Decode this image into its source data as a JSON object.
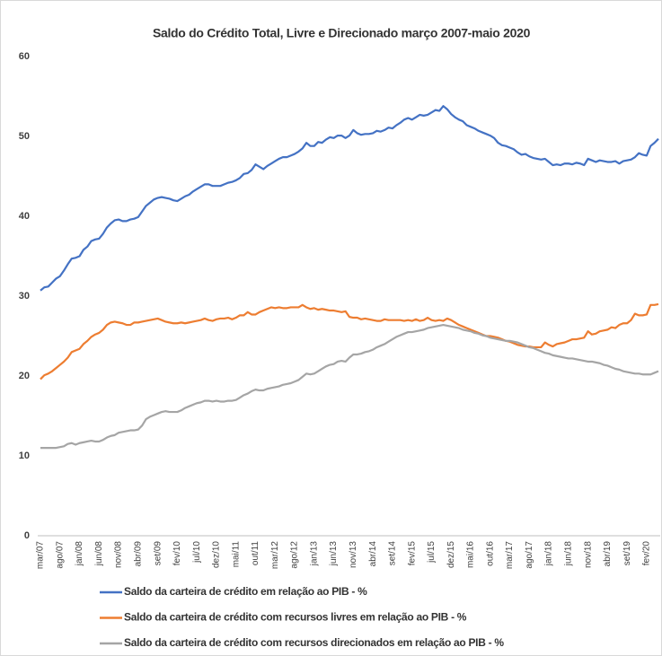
{
  "chart_data": {
    "type": "line",
    "title": "Saldo do Crédito Total, Livre e Direcionado março 2007-maio 2020",
    "categories": [
      "mar/07",
      null,
      null,
      null,
      null,
      "ago/07",
      null,
      null,
      null,
      null,
      "jan/08",
      null,
      null,
      null,
      null,
      "jun/08",
      null,
      null,
      null,
      null,
      "nov/08",
      null,
      null,
      null,
      null,
      "abr/09",
      null,
      null,
      null,
      null,
      "set/09",
      null,
      null,
      null,
      null,
      "fev/10",
      null,
      null,
      null,
      null,
      "jul/10",
      null,
      null,
      null,
      null,
      "dez/10",
      null,
      null,
      null,
      null,
      "mai/11",
      null,
      null,
      null,
      null,
      "out/11",
      null,
      null,
      null,
      null,
      "mar/12",
      null,
      null,
      null,
      null,
      "ago/12",
      null,
      null,
      null,
      null,
      "jan/13",
      null,
      null,
      null,
      null,
      "jun/13",
      null,
      null,
      null,
      null,
      "nov/13",
      null,
      null,
      null,
      null,
      "abr/14",
      null,
      null,
      null,
      null,
      "set/14",
      null,
      null,
      null,
      null,
      "fev/15",
      null,
      null,
      null,
      null,
      "jul/15",
      null,
      null,
      null,
      null,
      "dez/15",
      null,
      null,
      null,
      null,
      "mai/16",
      null,
      null,
      null,
      null,
      "out/16",
      null,
      null,
      null,
      null,
      "mar/17",
      null,
      null,
      null,
      null,
      "ago/17",
      null,
      null,
      null,
      null,
      "jan/18",
      null,
      null,
      null,
      null,
      "jun/18",
      null,
      null,
      null,
      null,
      "nov/18",
      null,
      null,
      null,
      null,
      "abr/19",
      null,
      null,
      null,
      null,
      "set/19",
      null,
      null,
      null,
      null,
      "fev/20",
      null,
      null,
      null
    ],
    "series": [
      {
        "name": "Saldo da carteira de crédito em relação ao PIB - %",
        "color": "#4472c4",
        "values": [
          30.7,
          31.1,
          31.2,
          31.7,
          32.2,
          32.5,
          33.2,
          34.0,
          34.7,
          34.8,
          35.0,
          35.8,
          36.2,
          36.9,
          37.1,
          37.2,
          37.8,
          38.6,
          39.1,
          39.5,
          39.6,
          39.4,
          39.4,
          39.6,
          39.7,
          39.9,
          40.6,
          41.3,
          41.7,
          42.1,
          42.3,
          42.4,
          42.3,
          42.2,
          42.0,
          41.9,
          42.2,
          42.5,
          42.7,
          43.1,
          43.4,
          43.7,
          44.0,
          44.0,
          43.8,
          43.8,
          43.8,
          44.0,
          44.2,
          44.3,
          44.5,
          44.8,
          45.3,
          45.4,
          45.8,
          46.5,
          46.2,
          45.9,
          46.3,
          46.6,
          46.9,
          47.2,
          47.4,
          47.4,
          47.6,
          47.8,
          48.1,
          48.5,
          49.2,
          48.8,
          48.8,
          49.3,
          49.2,
          49.6,
          49.9,
          49.8,
          50.1,
          50.1,
          49.8,
          50.1,
          50.8,
          50.4,
          50.2,
          50.3,
          50.3,
          50.4,
          50.7,
          50.6,
          50.8,
          51.1,
          51.0,
          51.4,
          51.7,
          52.1,
          52.3,
          52.1,
          52.4,
          52.7,
          52.6,
          52.7,
          53.0,
          53.3,
          53.2,
          53.8,
          53.4,
          52.8,
          52.4,
          52.1,
          51.9,
          51.4,
          51.2,
          51.0,
          50.7,
          50.5,
          50.3,
          50.1,
          49.8,
          49.2,
          48.9,
          48.8,
          48.6,
          48.4,
          48.0,
          47.7,
          47.8,
          47.5,
          47.3,
          47.2,
          47.1,
          47.2,
          46.8,
          46.4,
          46.5,
          46.4,
          46.6,
          46.6,
          46.5,
          46.7,
          46.6,
          46.4,
          47.2,
          47.0,
          46.8,
          47.0,
          46.9,
          46.8,
          46.8,
          46.9,
          46.6,
          46.9,
          47.0,
          47.1,
          47.4,
          47.9,
          47.7,
          47.6,
          48.8,
          49.2,
          49.7
        ]
      },
      {
        "name": "Saldo da carteira de crédito com recursos livres em relação ao PIB - %",
        "color": "#ed7d31",
        "values": [
          19.6,
          20.1,
          20.3,
          20.6,
          21.0,
          21.4,
          21.8,
          22.3,
          23.0,
          23.2,
          23.4,
          24.0,
          24.4,
          24.9,
          25.2,
          25.4,
          25.8,
          26.4,
          26.7,
          26.8,
          26.7,
          26.6,
          26.4,
          26.4,
          26.7,
          26.7,
          26.8,
          26.9,
          27.0,
          27.1,
          27.2,
          27.0,
          26.8,
          26.7,
          26.6,
          26.6,
          26.7,
          26.6,
          26.7,
          26.8,
          26.9,
          27.0,
          27.2,
          27.0,
          26.9,
          27.1,
          27.2,
          27.2,
          27.3,
          27.1,
          27.3,
          27.6,
          27.6,
          28.0,
          27.7,
          27.7,
          28.0,
          28.2,
          28.4,
          28.6,
          28.5,
          28.6,
          28.5,
          28.5,
          28.6,
          28.6,
          28.6,
          28.9,
          28.6,
          28.4,
          28.5,
          28.3,
          28.4,
          28.3,
          28.2,
          28.2,
          28.1,
          28.0,
          28.1,
          27.4,
          27.3,
          27.3,
          27.1,
          27.2,
          27.1,
          27.0,
          26.9,
          26.9,
          27.1,
          27.0,
          27.0,
          27.0,
          27.0,
          26.9,
          27.0,
          26.9,
          27.1,
          26.9,
          27.0,
          27.3,
          27.0,
          26.9,
          27.0,
          26.9,
          27.2,
          27.0,
          26.7,
          26.4,
          26.2,
          26.0,
          25.8,
          25.6,
          25.4,
          25.2,
          25.0,
          25.0,
          24.9,
          24.8,
          24.6,
          24.4,
          24.3,
          24.1,
          23.9,
          23.8,
          23.7,
          23.7,
          23.6,
          23.6,
          23.6,
          24.2,
          23.9,
          23.7,
          24.0,
          24.1,
          24.2,
          24.4,
          24.6,
          24.6,
          24.7,
          24.8,
          25.6,
          25.2,
          25.3,
          25.6,
          25.7,
          25.8,
          26.1,
          26.0,
          26.4,
          26.6,
          26.6,
          27.0,
          27.8,
          27.6,
          27.6,
          27.7,
          28.9,
          28.9,
          29.0
        ]
      },
      {
        "name": "Saldo da carteira de crédito com recursos direcionados em relação ao PIB - %",
        "color": "#a5a5a5",
        "values": [
          11.0,
          11.0,
          11.0,
          11.0,
          11.0,
          11.1,
          11.2,
          11.5,
          11.6,
          11.4,
          11.6,
          11.7,
          11.8,
          11.9,
          11.8,
          11.8,
          12.0,
          12.3,
          12.5,
          12.6,
          12.9,
          13.0,
          13.1,
          13.2,
          13.2,
          13.3,
          13.8,
          14.6,
          14.9,
          15.1,
          15.3,
          15.5,
          15.6,
          15.5,
          15.5,
          15.5,
          15.7,
          16.0,
          16.2,
          16.4,
          16.6,
          16.7,
          16.9,
          16.9,
          16.8,
          16.9,
          16.8,
          16.8,
          16.9,
          16.9,
          17.0,
          17.3,
          17.6,
          17.8,
          18.1,
          18.3,
          18.2,
          18.2,
          18.4,
          18.5,
          18.6,
          18.7,
          18.9,
          19.0,
          19.1,
          19.3,
          19.5,
          19.9,
          20.3,
          20.2,
          20.3,
          20.6,
          20.9,
          21.2,
          21.4,
          21.5,
          21.8,
          21.9,
          21.8,
          22.3,
          22.7,
          22.7,
          22.8,
          23.0,
          23.1,
          23.3,
          23.6,
          23.8,
          24.0,
          24.3,
          24.6,
          24.9,
          25.1,
          25.3,
          25.5,
          25.5,
          25.6,
          25.7,
          25.8,
          26.0,
          26.1,
          26.2,
          26.3,
          26.4,
          26.3,
          26.2,
          26.1,
          26.0,
          25.8,
          25.7,
          25.6,
          25.4,
          25.3,
          25.1,
          25.0,
          24.8,
          24.7,
          24.6,
          24.5,
          24.4,
          24.4,
          24.3,
          24.2,
          24.0,
          23.8,
          23.6,
          23.5,
          23.3,
          23.1,
          22.9,
          22.8,
          22.6,
          22.5,
          22.4,
          22.3,
          22.2,
          22.2,
          22.1,
          22.0,
          21.9,
          21.8,
          21.8,
          21.7,
          21.6,
          21.4,
          21.3,
          21.1,
          20.9,
          20.8,
          20.6,
          20.5,
          20.4,
          20.3,
          20.3,
          20.2,
          20.2,
          20.2,
          20.4,
          20.6
        ]
      }
    ],
    "ylim": [
      0,
      60
    ],
    "yticks": [
      0,
      10,
      20,
      30,
      40,
      50,
      60
    ],
    "grid": false,
    "legend": "bottom"
  }
}
